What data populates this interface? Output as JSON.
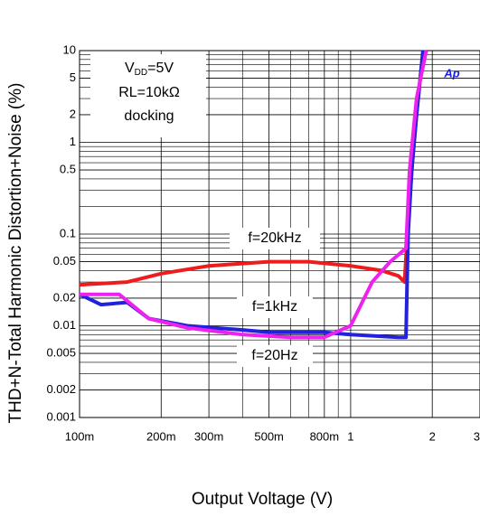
{
  "chart_data": {
    "type": "line",
    "x_label": "Output Voltage (V)",
    "y_label": "THD+N-Total Harmonic Distortion+Noise (%)",
    "log_x": true,
    "log_y": true,
    "grid": true,
    "xlim": [
      0.1,
      3
    ],
    "ylim": [
      0.001,
      10
    ],
    "xticks": [
      {
        "value": 0.1,
        "label": "100m"
      },
      {
        "value": 0.2,
        "label": "200m"
      },
      {
        "value": 0.3,
        "label": "300m"
      },
      {
        "value": 0.5,
        "label": "500m"
      },
      {
        "value": 0.8,
        "label": "800m"
      },
      1,
      2,
      3
    ],
    "xminorticks": [
      0.4,
      0.6,
      0.7,
      0.9
    ],
    "yticks": [
      0.001,
      0.002,
      0.005,
      0.01,
      0.02,
      0.05,
      0.1,
      0.5,
      1,
      2,
      5,
      10
    ],
    "yminorticks": [
      0.003,
      0.004,
      0.006,
      0.007,
      0.008,
      0.009,
      0.03,
      0.04,
      0.06,
      0.07,
      0.08,
      0.09,
      0.2,
      0.3,
      0.4,
      0.6,
      0.7,
      0.8,
      0.9,
      3,
      4,
      6,
      7,
      8,
      9
    ],
    "series": [
      {
        "name": "f=20kHz",
        "color": "#ee1c1c",
        "x": [
          0.1,
          0.15,
          0.2,
          0.3,
          0.5,
          0.7,
          1.0,
          1.3,
          1.5,
          1.58,
          1.62,
          1.68,
          1.75,
          1.85
        ],
        "values": [
          0.028,
          0.03,
          0.037,
          0.045,
          0.05,
          0.05,
          0.045,
          0.04,
          0.035,
          0.03,
          0.1,
          0.5,
          2,
          10
        ]
      },
      {
        "name": "f=1kHz",
        "color": "#2222dd",
        "x": [
          0.1,
          0.12,
          0.15,
          0.18,
          0.25,
          0.4,
          0.5,
          0.8,
          1.0,
          1.5,
          1.6,
          1.63,
          1.68,
          1.75,
          1.85
        ],
        "values": [
          0.022,
          0.017,
          0.018,
          0.012,
          0.01,
          0.009,
          0.0085,
          0.0085,
          0.008,
          0.0075,
          0.0075,
          0.1,
          0.5,
          2,
          10
        ]
      },
      {
        "name": "f=20Hz",
        "color": "#ee22ee",
        "x": [
          0.1,
          0.14,
          0.18,
          0.25,
          0.4,
          0.6,
          0.8,
          1.0,
          1.2,
          1.4,
          1.6,
          1.65,
          1.75,
          1.9
        ],
        "values": [
          0.022,
          0.022,
          0.012,
          0.0095,
          0.008,
          0.0075,
          0.0075,
          0.01,
          0.03,
          0.05,
          0.07,
          0.5,
          3,
          10
        ]
      }
    ],
    "conditions": {
      "v": "V",
      "sub": "DD",
      "vdd": "=5V",
      "rl": "RL=10kΩ",
      "mode": "docking"
    },
    "logo": "Ap"
  }
}
